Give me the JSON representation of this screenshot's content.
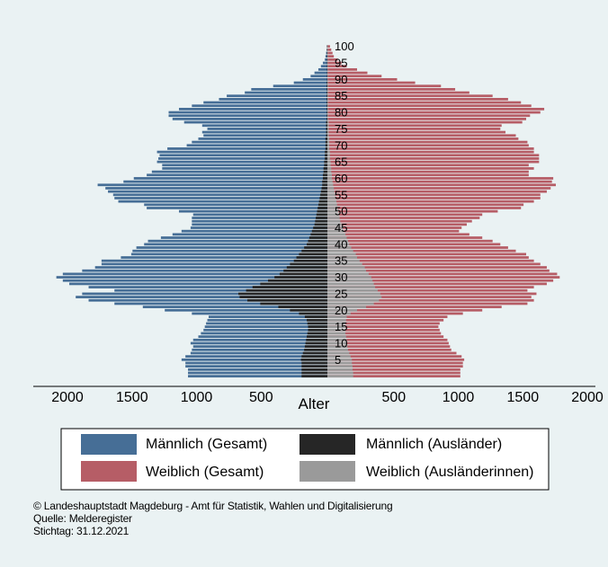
{
  "colors": {
    "background": "#eaf2f3",
    "male_total": "#466e96",
    "female_total": "#b65d66",
    "male_foreign": "#262626",
    "female_foreign": "#9a9a9a"
  },
  "chart_data": {
    "type": "bar",
    "orientation": "horizontal-population-pyramid",
    "xlabel": "Alter",
    "x_ticks_left": [
      "2000",
      "1500",
      "1000",
      "500"
    ],
    "x_ticks_right": [
      "500",
      "1000",
      "1500",
      "2000"
    ],
    "xlim": [
      -2000,
      2000
    ],
    "ylim": [
      0,
      100
    ],
    "age_labels": [
      "5",
      "10",
      "15",
      "20",
      "25",
      "30",
      "35",
      "40",
      "45",
      "50",
      "55",
      "60",
      "65",
      "70",
      "75",
      "80",
      "85",
      "90",
      "95",
      "100"
    ],
    "legend": [
      {
        "label": "Männlich (Gesamt)",
        "color": "#466e96"
      },
      {
        "label": "Männlich (Ausländer)",
        "color": "#262626"
      },
      {
        "label": "Weiblich (Gesamt)",
        "color": "#b65d66"
      },
      {
        "label": "Weiblich (Ausländerinnen)",
        "color": "#9a9a9a"
      }
    ],
    "ages": [
      0,
      1,
      2,
      3,
      4,
      5,
      6,
      7,
      8,
      9,
      10,
      11,
      12,
      13,
      14,
      15,
      16,
      17,
      18,
      19,
      20,
      21,
      22,
      23,
      24,
      25,
      26,
      27,
      28,
      29,
      30,
      31,
      32,
      33,
      34,
      35,
      36,
      37,
      38,
      39,
      40,
      41,
      42,
      43,
      44,
      45,
      46,
      47,
      48,
      49,
      50,
      51,
      52,
      53,
      54,
      55,
      56,
      57,
      58,
      59,
      60,
      61,
      62,
      63,
      64,
      65,
      66,
      67,
      68,
      69,
      70,
      71,
      72,
      73,
      74,
      75,
      76,
      77,
      78,
      79,
      80,
      81,
      82,
      83,
      84,
      85,
      86,
      87,
      88,
      89,
      90,
      91,
      92,
      93,
      94,
      95,
      96,
      97,
      98,
      99,
      100
    ],
    "series": [
      {
        "name": "Männlich (Gesamt)",
        "values": [
          1080,
          1080,
          1080,
          1100,
          1100,
          1130,
          1100,
          1060,
          1050,
          1040,
          1060,
          1040,
          1000,
          980,
          960,
          950,
          940,
          930,
          920,
          1050,
          1260,
          1430,
          1650,
          1850,
          1950,
          1900,
          1650,
          1850,
          2000,
          2050,
          2100,
          2050,
          1900,
          1800,
          1750,
          1750,
          1600,
          1520,
          1510,
          1480,
          1420,
          1390,
          1290,
          1200,
          1130,
          1060,
          1050,
          1050,
          1050,
          1040,
          1150,
          1400,
          1420,
          1620,
          1650,
          1660,
          1700,
          1720,
          1780,
          1580,
          1500,
          1400,
          1360,
          1280,
          1280,
          1320,
          1310,
          1300,
          1320,
          1240,
          1090,
          1050,
          1000,
          960,
          970,
          930,
          970,
          1110,
          1200,
          1230,
          1230,
          1150,
          1050,
          960,
          840,
          780,
          640,
          590,
          420,
          260,
          190,
          130,
          100,
          70,
          50,
          35,
          20,
          15,
          10,
          5,
          3
        ]
      },
      {
        "name": "Männlich (Ausländer)",
        "values": [
          200,
          200,
          200,
          200,
          200,
          205,
          200,
          190,
          180,
          175,
          170,
          165,
          160,
          155,
          150,
          150,
          155,
          160,
          175,
          220,
          290,
          380,
          520,
          620,
          680,
          690,
          630,
          580,
          520,
          460,
          410,
          370,
          340,
          315,
          290,
          260,
          240,
          220,
          200,
          180,
          160,
          150,
          140,
          130,
          120,
          110,
          100,
          95,
          90,
          85,
          80,
          75,
          70,
          65,
          60,
          55,
          50,
          45,
          40,
          40,
          35,
          35,
          30,
          30,
          25,
          25,
          20,
          20,
          20,
          15,
          15,
          15,
          15,
          10,
          10,
          10,
          10,
          10,
          5,
          5,
          5,
          5,
          5,
          5,
          5,
          5,
          5,
          5,
          5,
          5,
          3,
          3,
          3,
          3,
          3,
          3,
          3,
          3,
          3,
          3,
          3
        ]
      },
      {
        "name": "Weiblich (Gesamt)",
        "values": [
          1030,
          1030,
          1030,
          1050,
          1050,
          1060,
          1040,
          1000,
          960,
          950,
          940,
          930,
          900,
          880,
          870,
          860,
          870,
          900,
          930,
          1050,
          1200,
          1350,
          1550,
          1600,
          1580,
          1620,
          1550,
          1600,
          1700,
          1750,
          1800,
          1780,
          1720,
          1700,
          1650,
          1600,
          1560,
          1540,
          1460,
          1400,
          1340,
          1280,
          1200,
          1100,
          1020,
          1040,
          1080,
          1120,
          1180,
          1200,
          1320,
          1500,
          1520,
          1600,
          1650,
          1650,
          1700,
          1730,
          1770,
          1740,
          1750,
          1560,
          1560,
          1600,
          1560,
          1640,
          1640,
          1640,
          1600,
          1600,
          1560,
          1550,
          1480,
          1460,
          1380,
          1340,
          1350,
          1510,
          1540,
          1570,
          1650,
          1680,
          1580,
          1500,
          1400,
          1280,
          1100,
          990,
          880,
          680,
          540,
          420,
          310,
          230,
          150,
          110,
          80,
          50,
          40,
          30,
          20
        ]
      },
      {
        "name": "Weiblich (Ausländerinnen)",
        "values": [
          200,
          200,
          195,
          195,
          190,
          190,
          180,
          170,
          160,
          155,
          150,
          150,
          145,
          140,
          140,
          140,
          140,
          145,
          150,
          180,
          230,
          300,
          360,
          400,
          420,
          410,
          390,
          370,
          360,
          350,
          340,
          320,
          300,
          290,
          270,
          250,
          230,
          220,
          200,
          185,
          170,
          160,
          150,
          140,
          130,
          120,
          110,
          100,
          95,
          90,
          85,
          80,
          75,
          70,
          65,
          60,
          55,
          50,
          45,
          40,
          35,
          35,
          30,
          30,
          25,
          25,
          20,
          20,
          20,
          15,
          15,
          15,
          15,
          10,
          10,
          10,
          10,
          10,
          5,
          5,
          5,
          5,
          5,
          5,
          5,
          5,
          5,
          5,
          5,
          5,
          3,
          3,
          3,
          3,
          3,
          3,
          3,
          3,
          3,
          3,
          3
        ]
      }
    ]
  },
  "footer": {
    "copyright": "© Landeshauptstadt Magdeburg - Amt für Statistik, Wahlen und Digitalisierung",
    "source": "Quelle: Melderegister",
    "date": "Stichtag: 31.12.2021"
  }
}
